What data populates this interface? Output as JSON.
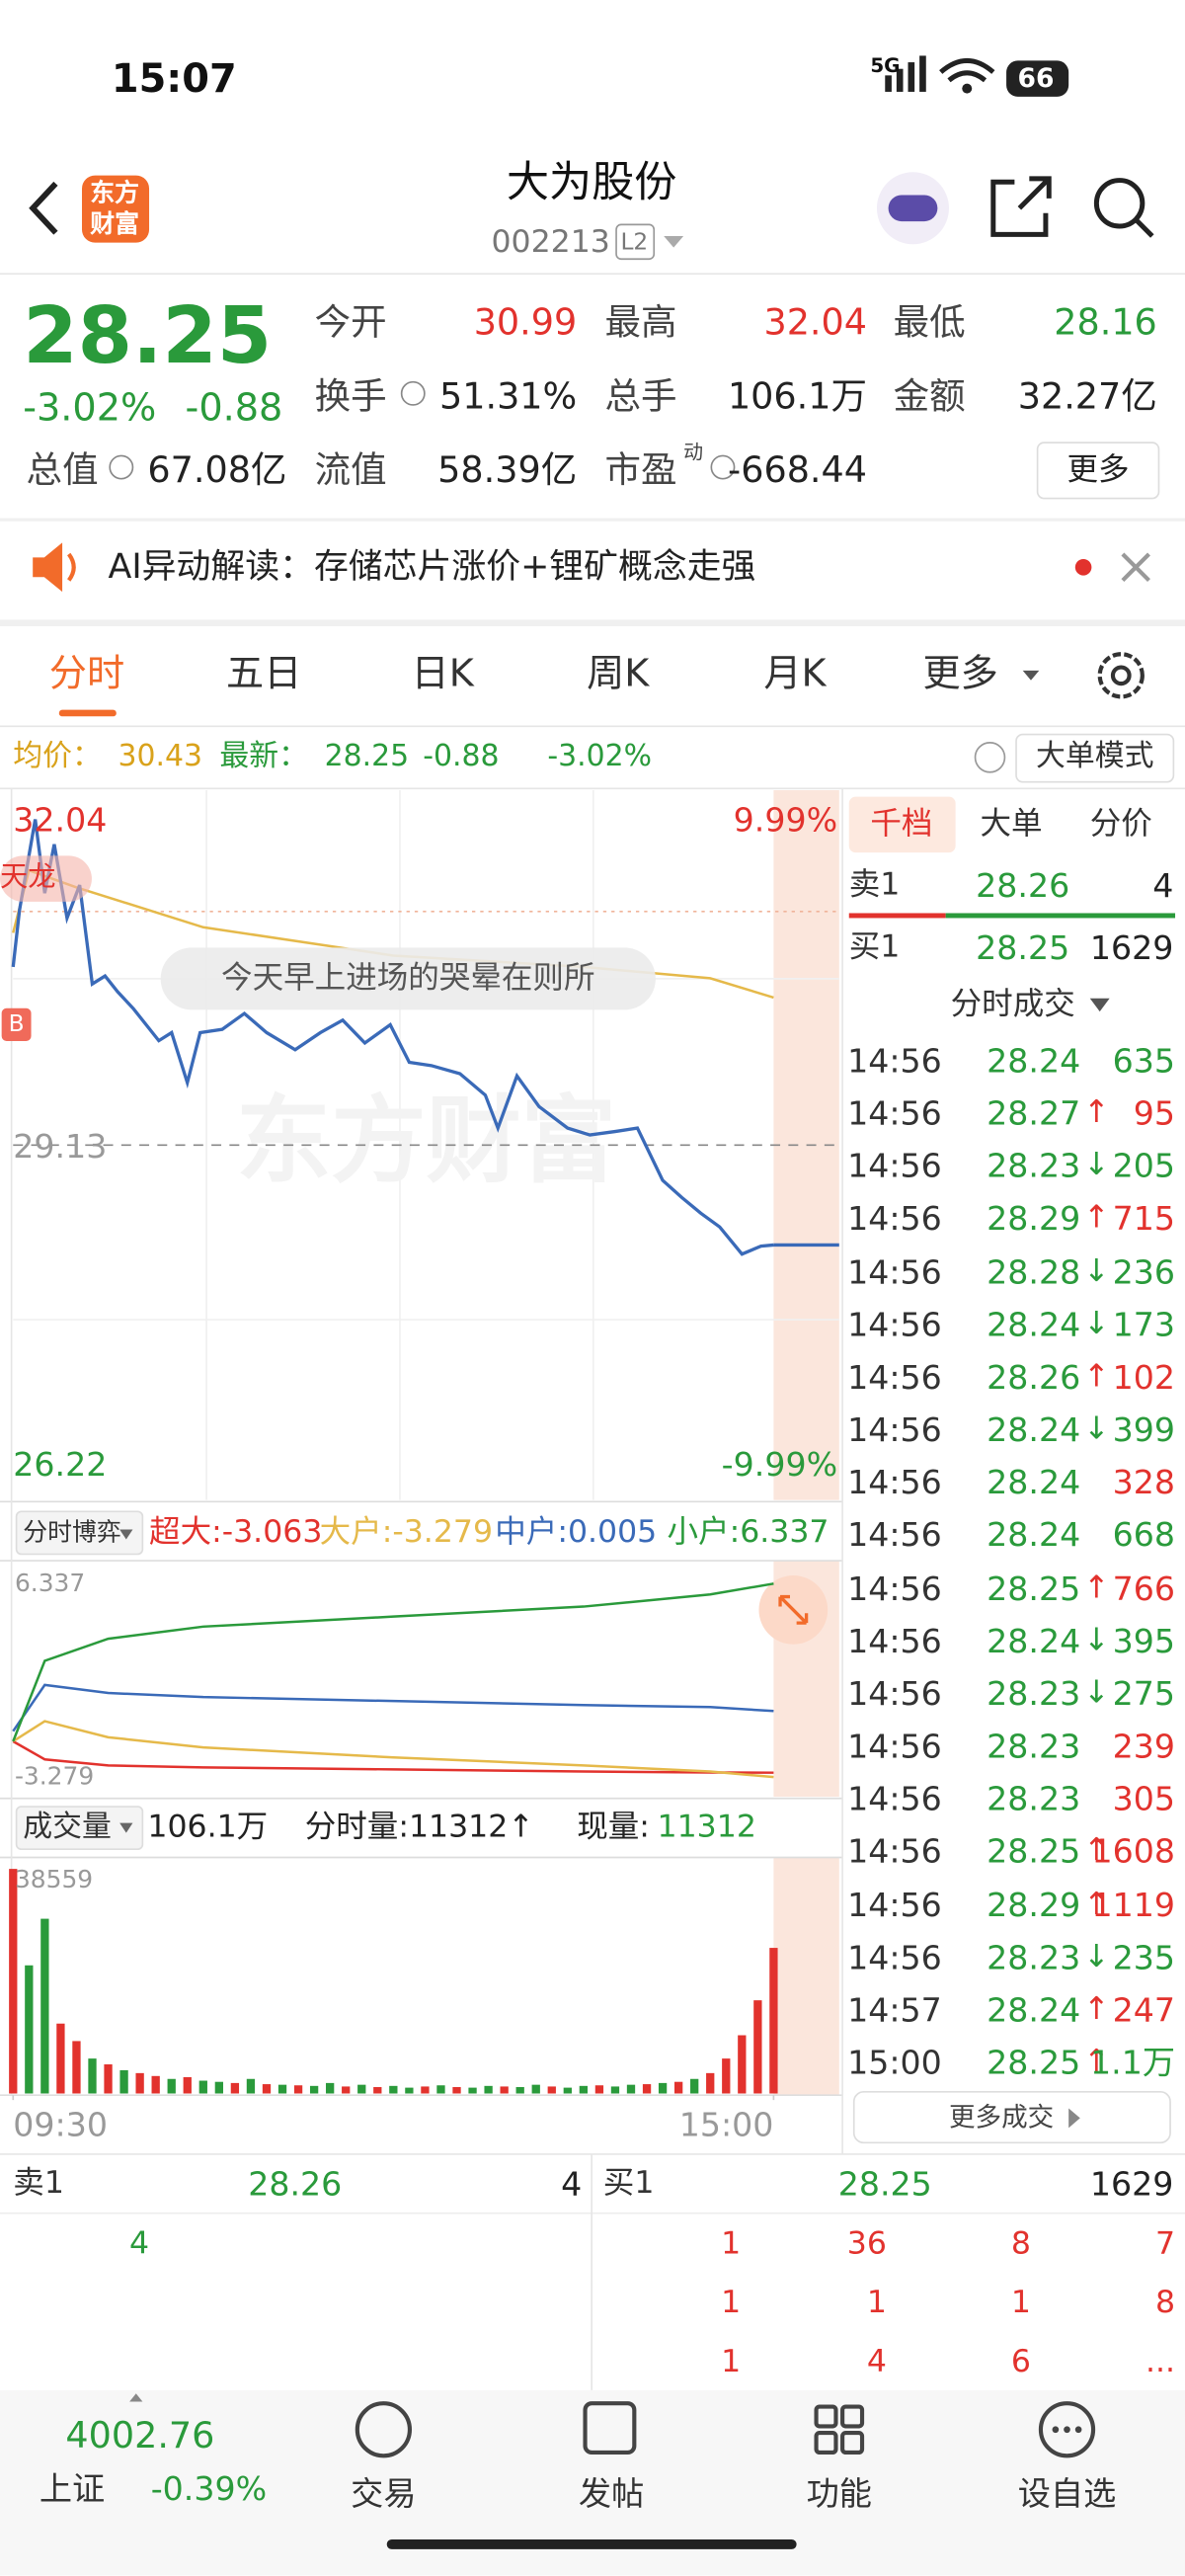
{
  "status_bar": {
    "time": "15:07",
    "network": "5G",
    "battery": "66"
  },
  "header": {
    "logo": [
      "东方",
      "财富"
    ],
    "title": "大为股份",
    "code": "002213",
    "level": "L2"
  },
  "quote": {
    "price": "28.25",
    "change_pct": "-3.02%",
    "change": "-0.88",
    "price_color": "#2a9a3b",
    "fields": [
      {
        "label": "今开",
        "value": "30.99",
        "color": "#e2322d"
      },
      {
        "label": "最高",
        "value": "32.04",
        "color": "#e2322d"
      },
      {
        "label": "最低",
        "value": "28.16",
        "color": "#2a9a3b"
      },
      {
        "label": "换手",
        "value": "51.31%",
        "color": "#222222"
      },
      {
        "label": "总手",
        "value": "106.1万",
        "color": "#222222"
      },
      {
        "label": "金额",
        "value": "32.27亿",
        "color": "#222222"
      },
      {
        "label": "总值",
        "value": "67.08亿",
        "color": "#222222"
      },
      {
        "label": "流值",
        "value": "58.39亿",
        "color": "#222222"
      },
      {
        "label": "市盈",
        "sup": "动",
        "value": "-668.44",
        "color": "#222222"
      }
    ],
    "more": "更多"
  },
  "ai_bar": {
    "text": "AI异动解读：存储芯片涨价+锂矿概念走强"
  },
  "tabs": [
    "分时",
    "五日",
    "日K",
    "周K",
    "月K",
    "更多"
  ],
  "info_bar": {
    "avg_label": "均价：",
    "avg": "30.43",
    "last_label": "最新：",
    "last": "28.25",
    "change": "-0.88",
    "change_pct": "-3.02%",
    "mode": "大单模式"
  },
  "price_chart": {
    "type": "line",
    "series": [
      {
        "color": "#3a6ab8",
        "x": [
          0,
          2,
          7,
          10,
          13,
          17,
          21,
          25,
          29,
          33,
          38,
          46,
          50,
          55,
          59,
          66,
          73,
          80,
          89,
          97,
          104,
          111,
          119,
          125,
          132,
          141,
          149,
          153,
          159,
          166,
          175,
          182,
          190,
          197,
          205,
          211,
          217,
          223,
          230,
          236,
          240
        ],
        "values": [
          30.7,
          31.2,
          32.0,
          31.35,
          31.78,
          31.13,
          31.42,
          30.55,
          30.62,
          30.48,
          30.33,
          30.05,
          30.12,
          29.68,
          30.12,
          30.15,
          30.29,
          30.12,
          29.97,
          30.12,
          30.23,
          30.03,
          30.19,
          29.86,
          29.83,
          29.76,
          29.57,
          29.28,
          29.74,
          29.47,
          29.28,
          29.22,
          29.25,
          29.28,
          28.82,
          28.67,
          28.53,
          28.41,
          28.17,
          28.24,
          28.25
        ]
      },
      {
        "color": "#e5b94a",
        "x": [
          0,
          5,
          20,
          60,
          120,
          180,
          220,
          240
        ],
        "values": [
          31.0,
          31.55,
          31.4,
          31.05,
          30.8,
          30.7,
          30.6,
          30.43
        ]
      }
    ],
    "xlim": [
      0,
      240
    ],
    "xticks": [
      {
        "value": 0,
        "label": "09:30"
      },
      {
        "value": 240,
        "label": "15:00"
      }
    ],
    "ylim": [
      26.22,
      32.04
    ],
    "yticks": [
      26.22,
      29.13,
      32.04
    ],
    "y2lim": [
      -9.99,
      9.99
    ],
    "y2ticks": [
      {
        "value": -9.99,
        "label": "-9.99%"
      },
      {
        "value": 9.99,
        "label": "9.99%"
      }
    ],
    "annotation": "今天早上进场的哭晕在则所",
    "watermark": "东方财富",
    "tags": [
      "天龙",
      "B"
    ]
  },
  "flow_chart": {
    "type": "line",
    "title": "分时博弈",
    "xlim": [
      0,
      240
    ],
    "ylim": [
      -3.279,
      6.337
    ],
    "yticks": [
      -3.279,
      6.337
    ],
    "series": [
      {
        "label": "超大:-3.063",
        "color": "#e2322d",
        "x": [
          0,
          10,
          30,
          60,
          120,
          180,
          220,
          240
        ],
        "values": [
          -1.5,
          -2.4,
          -2.7,
          -2.8,
          -2.9,
          -3.0,
          -3.05,
          -3.063
        ]
      },
      {
        "label": "大户:-3.279",
        "color": "#e5b94a",
        "x": [
          0,
          10,
          30,
          60,
          120,
          180,
          220,
          240
        ],
        "values": [
          -1.5,
          -0.5,
          -1.3,
          -1.8,
          -2.3,
          -2.7,
          -3.0,
          -3.279
        ]
      },
      {
        "label": "中户:0.005",
        "color": "#3a6ab8",
        "x": [
          0,
          10,
          30,
          60,
          120,
          180,
          220,
          240
        ],
        "values": [
          -1.0,
          1.3,
          0.9,
          0.7,
          0.5,
          0.3,
          0.2,
          0.005
        ]
      },
      {
        "label": "小户:6.337",
        "color": "#2a9a3b",
        "x": [
          0,
          10,
          30,
          60,
          120,
          180,
          220,
          240
        ],
        "values": [
          -1.5,
          2.5,
          3.6,
          4.2,
          4.7,
          5.2,
          5.8,
          6.337
        ]
      }
    ]
  },
  "volume_chart": {
    "type": "bar",
    "title": "成交量",
    "total": "106.1万",
    "minute_volume": "分时量:11312↑",
    "current_label": "现量:",
    "current": "11312",
    "xlim": [
      0,
      240
    ],
    "ylim": [
      0,
      38559
    ],
    "yticks": [
      38559
    ],
    "x": [
      0,
      5,
      10,
      15,
      20,
      25,
      30,
      35,
      40,
      45,
      50,
      55,
      60,
      65,
      70,
      75,
      80,
      85,
      90,
      95,
      100,
      105,
      110,
      115,
      120,
      125,
      130,
      135,
      140,
      145,
      150,
      155,
      160,
      165,
      170,
      175,
      180,
      185,
      190,
      195,
      200,
      205,
      210,
      215,
      220,
      225,
      230,
      235,
      240
    ],
    "values": [
      38559,
      22000,
      30000,
      12000,
      9000,
      6000,
      5000,
      4000,
      3500,
      3000,
      2500,
      2800,
      2200,
      2000,
      1800,
      2500,
      1600,
      1500,
      1400,
      1300,
      1800,
      1200,
      1500,
      1100,
      1300,
      1000,
      1200,
      1400,
      1100,
      1000,
      1300,
      1200,
      1100,
      1500,
      1200,
      1000,
      1300,
      1400,
      1200,
      1500,
      1600,
      1800,
      2000,
      2500,
      3500,
      6000,
      10000,
      16000,
      25000
    ],
    "colors": [
      "#e2322d",
      "#2a9a3b",
      "#2a9a3b",
      "#e2322d",
      "#e2322d",
      "#2a9a3b",
      "#e2322d",
      "#2a9a3b",
      "#e2322d",
      "#e2322d",
      "#2a9a3b",
      "#e2322d",
      "#2a9a3b",
      "#2a9a3b",
      "#e2322d",
      "#2a9a3b",
      "#e2322d",
      "#2a9a3b",
      "#e2322d",
      "#2a9a3b",
      "#2a9a3b",
      "#e2322d",
      "#2a9a3b",
      "#e2322d",
      "#2a9a3b",
      "#2a9a3b",
      "#e2322d",
      "#2a9a3b",
      "#e2322d",
      "#2a9a3b",
      "#2a9a3b",
      "#e2322d",
      "#2a9a3b",
      "#2a9a3b",
      "#e2322d",
      "#2a9a3b",
      "#2a9a3b",
      "#e2322d",
      "#2a9a3b",
      "#2a9a3b",
      "#e2322d",
      "#2a9a3b",
      "#e2322d",
      "#2a9a3b",
      "#e2322d",
      "#e2322d",
      "#e2322d",
      "#e2322d",
      "#e2322d"
    ]
  },
  "order_panel": {
    "tabs": [
      "千档",
      "大单",
      "分价"
    ],
    "ask": {
      "label": "卖1",
      "price": "28.26",
      "volume": "4"
    },
    "bid": {
      "label": "买1",
      "price": "28.25",
      "volume": "1629"
    },
    "trades_title": "分时成交",
    "trades": [
      {
        "time": "14:56",
        "price": "28.24",
        "volume": "635",
        "color": "#2a9a3b"
      },
      {
        "time": "14:56",
        "price": "28.27",
        "dir": "↑",
        "dir_color": "#e2322d",
        "volume": "95",
        "color": "#e2322d"
      },
      {
        "time": "14:56",
        "price": "28.23",
        "dir": "↓",
        "dir_color": "#2a9a3b",
        "volume": "205",
        "color": "#2a9a3b"
      },
      {
        "time": "14:56",
        "price": "28.29",
        "dir": "↑",
        "dir_color": "#e2322d",
        "volume": "715",
        "color": "#e2322d"
      },
      {
        "time": "14:56",
        "price": "28.28",
        "dir": "↓",
        "dir_color": "#2a9a3b",
        "volume": "236",
        "color": "#2a9a3b"
      },
      {
        "time": "14:56",
        "price": "28.24",
        "dir": "↓",
        "dir_color": "#2a9a3b",
        "volume": "173",
        "color": "#2a9a3b"
      },
      {
        "time": "14:56",
        "price": "28.26",
        "dir": "↑",
        "dir_color": "#e2322d",
        "volume": "102",
        "color": "#e2322d"
      },
      {
        "time": "14:56",
        "price": "28.24",
        "dir": "↓",
        "dir_color": "#2a9a3b",
        "volume": "399",
        "color": "#2a9a3b"
      },
      {
        "time": "14:56",
        "price": "28.24",
        "volume": "328",
        "color": "#e2322d"
      },
      {
        "time": "14:56",
        "price": "28.24",
        "volume": "668",
        "color": "#2a9a3b"
      },
      {
        "time": "14:56",
        "price": "28.25",
        "dir": "↑",
        "dir_color": "#e2322d",
        "volume": "766",
        "color": "#e2322d"
      },
      {
        "time": "14:56",
        "price": "28.24",
        "dir": "↓",
        "dir_color": "#2a9a3b",
        "volume": "395",
        "color": "#2a9a3b"
      },
      {
        "time": "14:56",
        "price": "28.23",
        "dir": "↓",
        "dir_color": "#2a9a3b",
        "volume": "275",
        "color": "#2a9a3b"
      },
      {
        "time": "14:56",
        "price": "28.23",
        "volume": "239",
        "color": "#e2322d"
      },
      {
        "time": "14:56",
        "price": "28.23",
        "volume": "305",
        "color": "#e2322d"
      },
      {
        "time": "14:56",
        "price": "28.25",
        "dir": "↑",
        "dir_color": "#e2322d",
        "volume": "1608",
        "color": "#e2322d"
      },
      {
        "time": "14:56",
        "price": "28.29",
        "dir": "↑",
        "dir_color": "#e2322d",
        "volume": "1119",
        "color": "#e2322d"
      },
      {
        "time": "14:56",
        "price": "28.23",
        "dir": "↓",
        "dir_color": "#2a9a3b",
        "volume": "235",
        "color": "#2a9a3b"
      },
      {
        "time": "14:57",
        "price": "28.24",
        "dir": "↑",
        "dir_color": "#e2322d",
        "volume": "247",
        "color": "#e2322d"
      },
      {
        "time": "15:00",
        "price": "28.25",
        "dir": "↑",
        "dir_color": "#e2322d",
        "volume": "1.1万",
        "color": "#2a9a3b"
      }
    ],
    "more": "更多成交"
  },
  "book": {
    "ask": {
      "label": "卖1",
      "price": "28.26",
      "volume": "4"
    },
    "bid": {
      "label": "买1",
      "price": "28.25",
      "volume": "1629"
    },
    "ask_queue": [
      "4"
    ],
    "bid_queue": [
      [
        "1",
        "36",
        "8",
        "7"
      ],
      [
        "1",
        "1",
        "1",
        "8"
      ],
      [
        "1",
        "4",
        "6",
        "..."
      ]
    ]
  },
  "bottom_nav": {
    "index": {
      "value": "4002.76",
      "name": "上证",
      "change": "-0.39%"
    },
    "items": [
      "交易",
      "发帖",
      "功能",
      "设自选"
    ]
  }
}
